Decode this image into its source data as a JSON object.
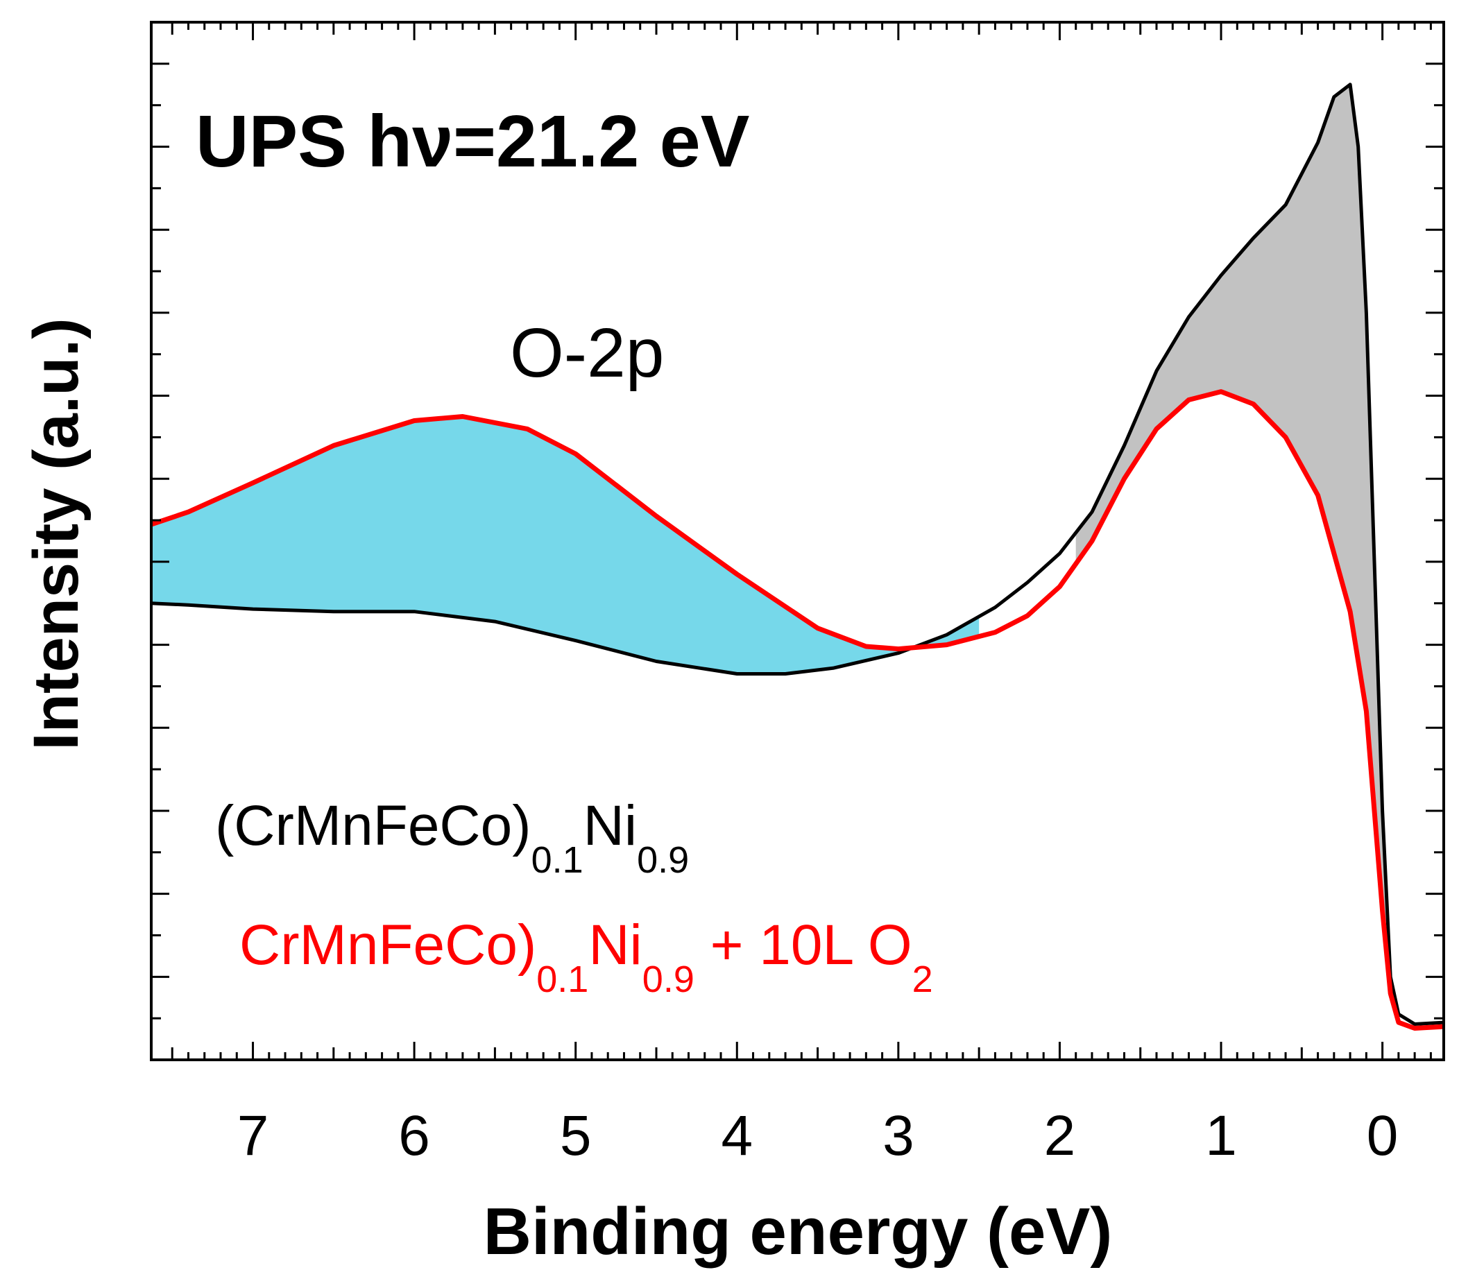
{
  "chart_data": {
    "type": "line",
    "title": "UPS  hν=21.2 eV",
    "xlabel": "Binding energy (eV)",
    "ylabel": "Intensity (a.u.)",
    "x_reversed": true,
    "xlim": [
      7.63,
      -0.38
    ],
    "ylim": [
      0,
      12.5
    ],
    "y_tick_labels": false,
    "x_ticks": [
      {
        "value": 7,
        "label": "7"
      },
      {
        "value": 6,
        "label": "6"
      },
      {
        "value": 5,
        "label": "5"
      },
      {
        "value": 4,
        "label": "4"
      },
      {
        "value": 3,
        "label": "3"
      },
      {
        "value": 2,
        "label": "2"
      },
      {
        "value": 1,
        "label": "1"
      },
      {
        "value": 0,
        "label": "0"
      }
    ],
    "annotations": [
      {
        "text": "O-2p",
        "meaning": "shaded region between curves, 2.5–7.63 eV"
      }
    ],
    "legend": {
      "placement": "bottom-left",
      "entries": [
        {
          "series": 0,
          "base": "(CrMnFeCo)",
          "sub1": "0.1",
          "mid": "Ni",
          "sub2": "0.9",
          "tail": "",
          "sub3": ""
        },
        {
          "series": 1,
          "base": "CrMnFeCo)",
          "sub1": "0.1",
          "mid": "Ni",
          "sub2": "0.9",
          "tail": " + 10L O",
          "sub3": "2"
        }
      ]
    },
    "series": [
      {
        "name": "(CrMnFeCo)0.1Ni0.9",
        "color": "#000000",
        "x": [
          7.63,
          7.4,
          7.0,
          6.5,
          6.0,
          5.5,
          5.0,
          4.5,
          4.0,
          3.7,
          3.4,
          3.0,
          2.7,
          2.4,
          2.2,
          2.0,
          1.8,
          1.6,
          1.4,
          1.2,
          1.0,
          0.8,
          0.6,
          0.4,
          0.3,
          0.2,
          0.15,
          0.1,
          0.05,
          0.0,
          -0.05,
          -0.1,
          -0.2,
          -0.38
        ],
        "y": [
          5.5,
          5.48,
          5.43,
          5.4,
          5.4,
          5.28,
          5.05,
          4.8,
          4.65,
          4.65,
          4.72,
          4.9,
          5.12,
          5.45,
          5.75,
          6.1,
          6.6,
          7.4,
          8.3,
          8.95,
          9.45,
          9.9,
          10.3,
          11.05,
          11.6,
          11.75,
          11.0,
          9.0,
          6.0,
          3.0,
          1.0,
          0.55,
          0.43,
          0.45
        ]
      },
      {
        "name": "(CrMnFeCo)0.1Ni0.9 + 10L O2",
        "color": "#ff0000",
        "x": [
          7.63,
          7.4,
          7.0,
          6.5,
          6.0,
          5.7,
          5.3,
          5.0,
          4.5,
          4.0,
          3.5,
          3.2,
          3.0,
          2.7,
          2.4,
          2.2,
          2.0,
          1.8,
          1.6,
          1.4,
          1.2,
          1.0,
          0.8,
          0.6,
          0.4,
          0.2,
          0.1,
          0.05,
          0.0,
          -0.05,
          -0.1,
          -0.2,
          -0.38
        ],
        "y": [
          6.45,
          6.6,
          6.95,
          7.4,
          7.7,
          7.75,
          7.6,
          7.3,
          6.55,
          5.85,
          5.2,
          4.98,
          4.95,
          5.0,
          5.15,
          5.35,
          5.7,
          6.25,
          7.0,
          7.6,
          7.95,
          8.05,
          7.9,
          7.5,
          6.8,
          5.4,
          4.2,
          3.0,
          1.8,
          0.8,
          0.45,
          0.38,
          0.4
        ]
      }
    ],
    "fills": [
      {
        "between": [
          0,
          1
        ],
        "from_x": 2.5,
        "to_x": 7.63,
        "color": "#76d8ea"
      },
      {
        "between": [
          0,
          1
        ],
        "from_x": -0.02,
        "to_x": 1.9,
        "color": "#c2c2c2"
      }
    ]
  }
}
